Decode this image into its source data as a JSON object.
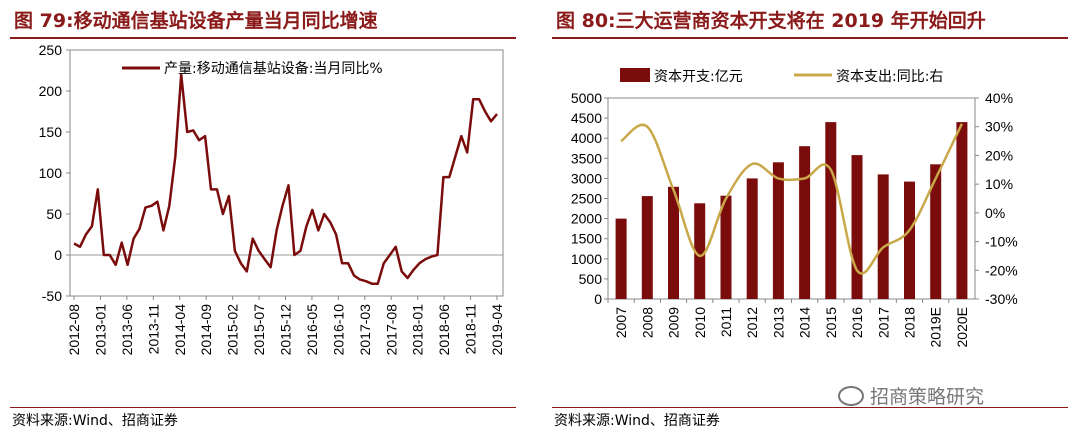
{
  "colors": {
    "accent": "#8b1a1a",
    "bar": "#7b0c0c",
    "line_gold": "#c9a84a",
    "line_dark": "#7b0c0c"
  },
  "left": {
    "title": "图 79:移动通信基站设备产量当月同比增速",
    "source": "资料来源:Wind、招商证券",
    "chart_data": {
      "type": "line",
      "series": [
        {
          "name": "产量:移动通信基站设备:当月同比%",
          "values": [
            14,
            10,
            25,
            35,
            80,
            0,
            0,
            -12,
            15,
            -12,
            20,
            32,
            58,
            60,
            65,
            30,
            60,
            120,
            220,
            150,
            152,
            140,
            145,
            80,
            80,
            50,
            72,
            5,
            -10,
            -20,
            20,
            5,
            -5,
            -15,
            30,
            60,
            85,
            0,
            5,
            35,
            55,
            30,
            50,
            40,
            25,
            -10,
            -10,
            -25,
            -30,
            -32,
            -35,
            -35,
            -10,
            0,
            10,
            -20,
            -28,
            -18,
            -10,
            -5,
            -2,
            0,
            95,
            95,
            120,
            145,
            125,
            190,
            190,
            175,
            163,
            172
          ]
        }
      ],
      "xticks": [
        "2012-08",
        "2013-01",
        "2013-06",
        "2013-11",
        "2014-04",
        "2014-09",
        "2015-02",
        "2015-07",
        "2015-12",
        "2016-05",
        "2016-10",
        "2017-03",
        "2017-08",
        "2018-01",
        "2018-06",
        "2018-11",
        "2019-04"
      ],
      "yticks": [
        "-50",
        "0",
        "50",
        "100",
        "150",
        "200",
        "250"
      ],
      "ylim": [
        -50,
        250
      ]
    }
  },
  "right": {
    "title": "图 80:三大运营商资本开支将在 2019 年开始回升",
    "source": "资料来源:Wind、招商证券",
    "chart_data": {
      "type": "bar",
      "categories": [
        "2007",
        "2008",
        "2009",
        "2010",
        "2011",
        "2012",
        "2013",
        "2014",
        "2015",
        "2016",
        "2017",
        "2018",
        "2019E",
        "2020E"
      ],
      "series": [
        {
          "name": "资本开支:亿元",
          "type": "bar",
          "axis": "left",
          "values": [
            2000,
            2560,
            2790,
            2380,
            2570,
            3000,
            3400,
            3800,
            4400,
            3580,
            3100,
            2920,
            3350,
            4400
          ]
        },
        {
          "name": "资本支出:同比:右",
          "type": "line",
          "axis": "right",
          "values": [
            25,
            30,
            8,
            -15,
            5,
            17,
            12,
            12,
            15,
            -20,
            -12,
            -6,
            12,
            31
          ]
        }
      ],
      "yticks_left": [
        "0",
        "500",
        "1000",
        "1500",
        "2000",
        "2500",
        "3000",
        "3500",
        "4000",
        "4500",
        "5000"
      ],
      "yticks_right": [
        "-30%",
        "-20%",
        "-10%",
        "0%",
        "10%",
        "20%",
        "30%",
        "40%"
      ],
      "ylim_left": [
        0,
        5000
      ],
      "ylim_right": [
        -30,
        40
      ]
    }
  },
  "watermark": "招商策略研究"
}
